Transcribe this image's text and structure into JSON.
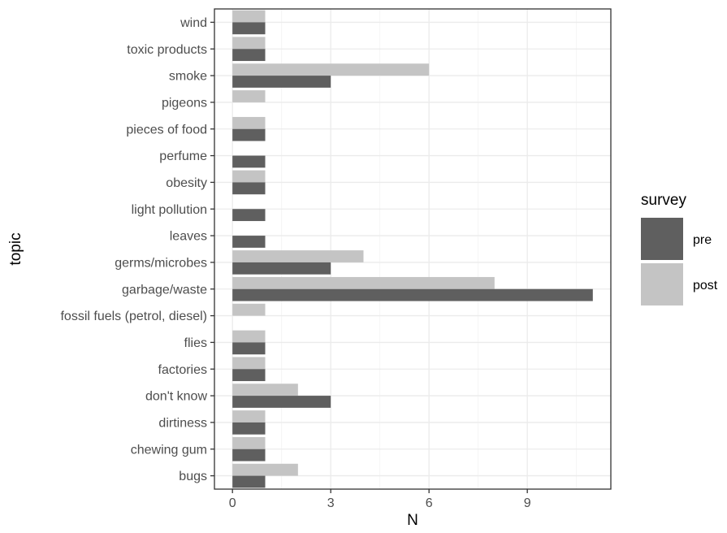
{
  "chart_data": {
    "type": "bar",
    "orientation": "horizontal",
    "categories": [
      "bugs",
      "chewing gum",
      "dirtiness",
      "don't know",
      "factories",
      "flies",
      "fossil fuels (petrol, diesel)",
      "garbage/waste",
      "germs/microbes",
      "leaves",
      "light pollution",
      "obesity",
      "perfume",
      "pieces of food",
      "pigeons",
      "smoke",
      "toxic products",
      "wind"
    ],
    "series": [
      {
        "name": "pre",
        "color": "#5f5f5f",
        "values": [
          1,
          1,
          1,
          3,
          1,
          1,
          0,
          11,
          3,
          1,
          1,
          1,
          1,
          1,
          0,
          3,
          1,
          1
        ]
      },
      {
        "name": "post",
        "color": "#c4c4c4",
        "values": [
          2,
          1,
          1,
          2,
          1,
          1,
          1,
          8,
          4,
          0,
          0,
          1,
          0,
          1,
          1,
          6,
          1,
          1
        ]
      }
    ],
    "xlabel": "N",
    "ylabel": "topic",
    "xlim": [
      -0.55,
      11.55
    ],
    "xticks": [
      "0",
      "3",
      "6",
      "9"
    ],
    "xtick_values": [
      0,
      3,
      6,
      9
    ],
    "grid": true,
    "legend": {
      "title": "survey",
      "position": "right"
    }
  }
}
